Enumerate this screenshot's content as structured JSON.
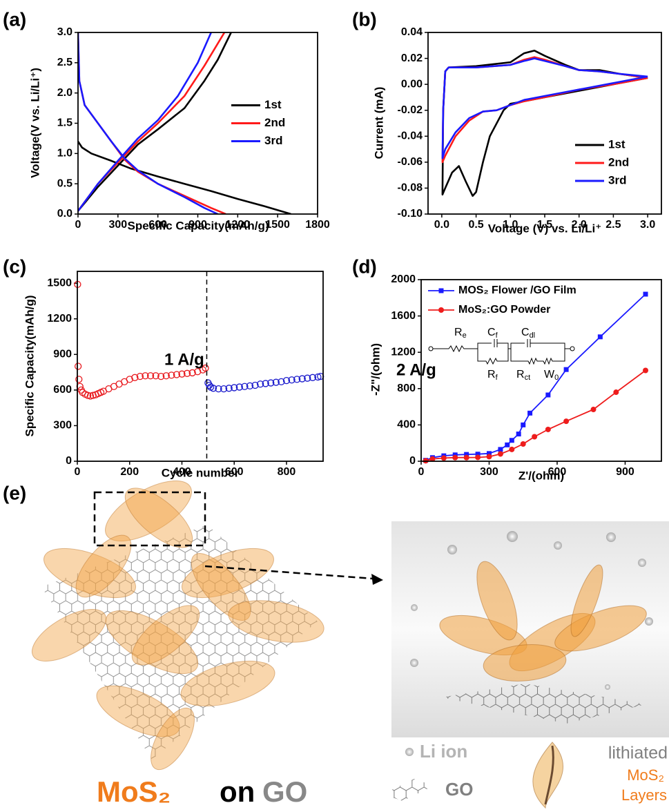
{
  "panel_labels": [
    "(a)",
    "(b)",
    "(c)",
    "(d)",
    "(e)"
  ],
  "chart_data": [
    {
      "type": "line",
      "xlabel": "Specific Capacity(mAh/g)",
      "ylabel": "Voltage(V vs. Li/Li⁺)",
      "xlim": [
        0,
        1800
      ],
      "xticks": [
        0,
        300,
        600,
        900,
        1200,
        1500,
        1800
      ],
      "ylim": [
        0,
        3
      ],
      "yticks": [
        {
          "value": 0,
          "label": "0.0"
        },
        0.5,
        {
          "value": 1,
          "label": "1.0"
        },
        1.5,
        {
          "value": 2,
          "label": "2.0"
        },
        2.5,
        {
          "value": 3,
          "label": "3.0"
        }
      ],
      "legend": "center right",
      "series": [
        {
          "name": "1st",
          "color": "#000000",
          "x": [
            0,
            30,
            100,
            250,
            400,
            600,
            800,
            1000,
            1200,
            1400,
            1600,
            null,
            0,
            150,
            300,
            450,
            600,
            800,
            950,
            1050,
            1150
          ],
          "values": [
            1.2,
            1.1,
            1.0,
            0.88,
            0.75,
            0.62,
            0.5,
            0.38,
            0.25,
            0.13,
            0.0,
            null,
            0.05,
            0.45,
            0.8,
            1.15,
            1.4,
            1.75,
            2.2,
            2.55,
            3.0
          ]
        },
        {
          "name": "2nd",
          "color": "#ff1a1a",
          "x": [
            0,
            10,
            50,
            150,
            250,
            350,
            450,
            600,
            800,
            1000,
            1110,
            null,
            0,
            150,
            300,
            450,
            600,
            800,
            950,
            1100
          ],
          "values": [
            3.0,
            2.2,
            1.8,
            1.5,
            1.2,
            0.9,
            0.7,
            0.5,
            0.3,
            0.1,
            0.0,
            null,
            0.05,
            0.5,
            0.85,
            1.2,
            1.5,
            1.95,
            2.45,
            3.0
          ]
        },
        {
          "name": "3rd",
          "color": "#1a1aff",
          "x": [
            0,
            10,
            50,
            150,
            250,
            350,
            450,
            600,
            800,
            950,
            1050,
            null,
            0,
            150,
            300,
            450,
            600,
            750,
            900,
            1000
          ],
          "values": [
            3.0,
            2.2,
            1.8,
            1.5,
            1.2,
            0.92,
            0.72,
            0.5,
            0.28,
            0.1,
            0.0,
            null,
            0.05,
            0.5,
            0.88,
            1.25,
            1.55,
            1.95,
            2.5,
            3.0
          ]
        }
      ]
    },
    {
      "type": "line",
      "xlabel": "Voltage (V) vs. Li/Li⁺",
      "ylabel": "Current (mA)",
      "xlim": [
        -0.2,
        3.2
      ],
      "xticks": [
        {
          "value": 0,
          "label": "0.0"
        },
        0.5,
        {
          "value": 1,
          "label": "1.0"
        },
        1.5,
        {
          "value": 2,
          "label": "2.0"
        },
        2.5,
        {
          "value": 3,
          "label": "3.0"
        }
      ],
      "ylim": [
        -0.1,
        0.04
      ],
      "yticks": [
        {
          "value": -0.1,
          "label": "-0.10"
        },
        {
          "value": -0.08,
          "label": "-0.08"
        },
        {
          "value": -0.06,
          "label": "-0.06"
        },
        {
          "value": -0.04,
          "label": "-0.04"
        },
        {
          "value": -0.02,
          "label": "-0.02"
        },
        {
          "value": 0,
          "label": "0.00"
        },
        {
          "value": 0.02,
          "label": "0.02"
        },
        {
          "value": 0.04,
          "label": "0.04"
        }
      ],
      "legend": "lower right",
      "series": [
        {
          "name": "1st",
          "color": "#000000",
          "x": [
            3.0,
            2.5,
            2.0,
            1.5,
            1.2,
            1.0,
            0.9,
            0.7,
            0.6,
            0.5,
            0.45,
            0.35,
            0.25,
            0.15,
            0.05,
            0.01,
            0.02,
            0.05,
            0.1,
            0.5,
            1.0,
            1.2,
            1.35,
            1.5,
            1.8,
            2.0,
            2.3,
            2.6,
            3.0
          ],
          "values": [
            0.005,
            0.0,
            -0.005,
            -0.01,
            -0.013,
            -0.015,
            -0.02,
            -0.04,
            -0.06,
            -0.083,
            -0.086,
            -0.075,
            -0.063,
            -0.068,
            -0.08,
            -0.085,
            -0.02,
            0.01,
            0.013,
            0.014,
            0.017,
            0.024,
            0.026,
            0.022,
            0.015,
            0.011,
            0.011,
            0.008,
            0.005
          ]
        },
        {
          "name": "2nd",
          "color": "#ff1a1a",
          "x": [
            3.0,
            2.5,
            2.0,
            1.5,
            1.2,
            1.0,
            0.8,
            0.6,
            0.4,
            0.2,
            0.05,
            0.01,
            0.02,
            0.05,
            0.1,
            0.5,
            1.0,
            1.2,
            1.35,
            1.5,
            1.8,
            2.0,
            2.3,
            2.6,
            3.0
          ],
          "values": [
            0.005,
            0.0,
            -0.004,
            -0.01,
            -0.013,
            -0.016,
            -0.02,
            -0.021,
            -0.028,
            -0.04,
            -0.055,
            -0.06,
            -0.02,
            0.01,
            0.013,
            0.013,
            0.015,
            0.019,
            0.021,
            0.019,
            0.014,
            0.011,
            0.01,
            0.008,
            0.005
          ]
        },
        {
          "name": "3rd",
          "color": "#1a1aff",
          "x": [
            3.0,
            2.5,
            2.0,
            1.5,
            1.2,
            1.0,
            0.8,
            0.6,
            0.4,
            0.2,
            0.05,
            0.01,
            0.02,
            0.05,
            0.1,
            0.5,
            1.0,
            1.2,
            1.35,
            1.5,
            1.8,
            2.0,
            2.3,
            2.6,
            3.0
          ],
          "values": [
            0.006,
            0.001,
            -0.004,
            -0.009,
            -0.012,
            -0.016,
            -0.02,
            -0.021,
            -0.026,
            -0.037,
            -0.05,
            -0.057,
            -0.02,
            0.01,
            0.013,
            0.013,
            0.015,
            0.018,
            0.02,
            0.018,
            0.014,
            0.011,
            0.01,
            0.008,
            0.006
          ]
        }
      ]
    },
    {
      "type": "scatter",
      "xlabel": "Cycle number",
      "ylabel": "Specific Capacity(mAh/g)",
      "xlim": [
        0,
        940
      ],
      "xticks": [
        0,
        200,
        400,
        600,
        800
      ],
      "ylim": [
        0,
        1600
      ],
      "yticks": [
        0,
        300,
        600,
        900,
        1200,
        1500
      ],
      "annotations": [
        "1 A/g",
        "2 A/g"
      ],
      "divider_x": 495,
      "series": [
        {
          "color": "#e8191e",
          "x": [
            1,
            3,
            6,
            10,
            15,
            20,
            30,
            40,
            50,
            60,
            70,
            80,
            90,
            100,
            120,
            140,
            160,
            180,
            200,
            220,
            240,
            260,
            280,
            300,
            320,
            340,
            360,
            380,
            400,
            420,
            440,
            460,
            480,
            490
          ],
          "values": [
            1490,
            800,
            690,
            630,
            600,
            580,
            565,
            555,
            550,
            555,
            560,
            570,
            580,
            590,
            610,
            630,
            650,
            670,
            690,
            705,
            715,
            720,
            720,
            720,
            715,
            720,
            725,
            730,
            735,
            740,
            745,
            755,
            770,
            785
          ]
        },
        {
          "color": "#1a1acc",
          "x": [
            500,
            505,
            510,
            520,
            540,
            560,
            580,
            600,
            620,
            640,
            660,
            680,
            700,
            720,
            740,
            760,
            780,
            800,
            820,
            840,
            860,
            880,
            900,
            920,
            930
          ],
          "values": [
            660,
            640,
            625,
            615,
            610,
            610,
            615,
            620,
            625,
            630,
            635,
            640,
            650,
            655,
            660,
            665,
            670,
            680,
            685,
            690,
            695,
            700,
            705,
            710,
            715
          ]
        }
      ]
    },
    {
      "type": "line",
      "xlabel": "Z'/(ohm)",
      "ylabel": "-Z\"/(ohm)",
      "xlim": [
        0,
        1060
      ],
      "xticks": [
        0,
        300,
        600,
        900
      ],
      "ylim": [
        0,
        2000
      ],
      "yticks": [
        0,
        400,
        800,
        1200,
        1600,
        2000
      ],
      "legend": "upper left",
      "circuit_labels": [
        {
          "base": "R",
          "sub": "e"
        },
        {
          "base": "C",
          "sub": "f"
        },
        {
          "base": "C",
          "sub": "dl"
        },
        {
          "base": "R",
          "sub": "f"
        },
        {
          "base": "R",
          "sub": "ct"
        },
        {
          "base": "W",
          "sub": "0"
        }
      ],
      "series": [
        {
          "name": "MOS₂ Flower /GO Film",
          "color": "#1a1aff",
          "marker": "square",
          "x": [
            20,
            50,
            100,
            150,
            200,
            250,
            300,
            350,
            380,
            400,
            430,
            450,
            480,
            560,
            640,
            790,
            990
          ],
          "values": [
            10,
            40,
            60,
            70,
            75,
            78,
            85,
            130,
            180,
            230,
            300,
            400,
            530,
            730,
            1010,
            1370,
            1840
          ]
        },
        {
          "name": "MoS₂:GO Powder",
          "color": "#ee1c1c",
          "marker": "circle",
          "x": [
            20,
            50,
            100,
            150,
            200,
            250,
            300,
            350,
            400,
            450,
            500,
            560,
            640,
            760,
            860,
            990
          ],
          "values": [
            5,
            25,
            35,
            40,
            40,
            42,
            50,
            80,
            130,
            190,
            270,
            350,
            440,
            570,
            760,
            1000
          ]
        }
      ]
    }
  ],
  "illustration": {
    "caption": [
      "MoS₂",
      "on",
      "GO"
    ],
    "li_ion": "Li ion",
    "go": "GO",
    "lithiated": "lithiated",
    "mos2": "MoS₂",
    "layers": "Layers"
  }
}
